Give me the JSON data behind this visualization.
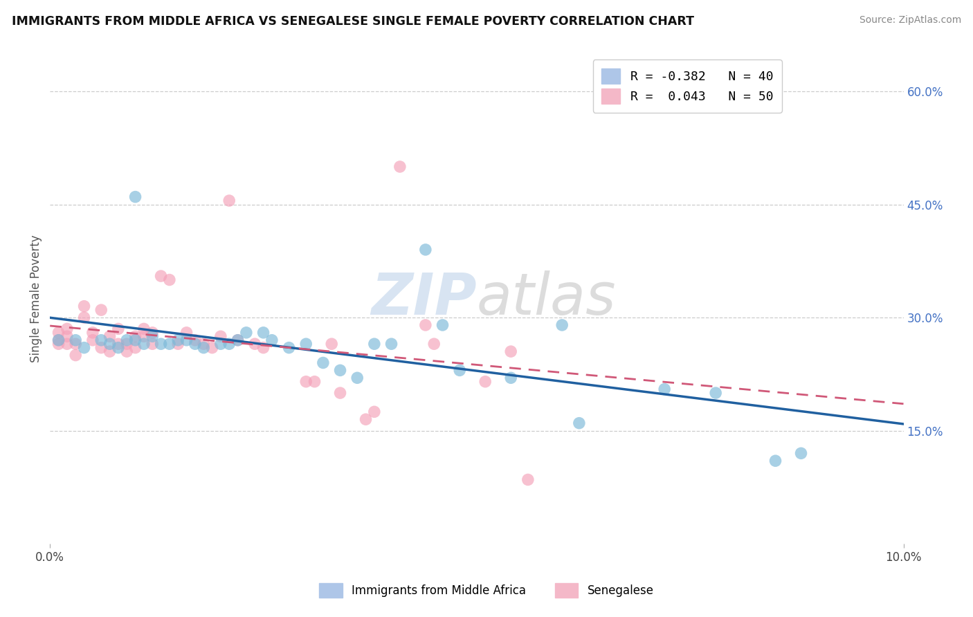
{
  "title": "IMMIGRANTS FROM MIDDLE AFRICA VS SENEGALESE SINGLE FEMALE POVERTY CORRELATION CHART",
  "source": "Source: ZipAtlas.com",
  "ylabel": "Single Female Poverty",
  "ylabel_right_ticks": [
    "60.0%",
    "45.0%",
    "30.0%",
    "15.0%"
  ],
  "ylabel_right_vals": [
    0.6,
    0.45,
    0.3,
    0.15
  ],
  "xlim": [
    0.0,
    0.1
  ],
  "ylim": [
    0.0,
    0.65
  ],
  "legend_entries": [
    {
      "label": "R = -0.382   N = 40",
      "color": "#aec6e8"
    },
    {
      "label": "R =  0.043   N = 50",
      "color": "#f4b8c8"
    }
  ],
  "legend_label1": "Immigrants from Middle Africa",
  "legend_label2": "Senegalese",
  "blue_scatter_x": [
    0.001,
    0.003,
    0.004,
    0.006,
    0.007,
    0.008,
    0.009,
    0.01,
    0.01,
    0.011,
    0.012,
    0.013,
    0.014,
    0.015,
    0.016,
    0.017,
    0.018,
    0.02,
    0.021,
    0.022,
    0.023,
    0.025,
    0.026,
    0.028,
    0.03,
    0.032,
    0.034,
    0.036,
    0.038,
    0.04,
    0.044,
    0.046,
    0.048,
    0.054,
    0.06,
    0.062,
    0.072,
    0.078,
    0.085,
    0.088
  ],
  "blue_scatter_y": [
    0.27,
    0.27,
    0.26,
    0.27,
    0.265,
    0.26,
    0.27,
    0.46,
    0.27,
    0.265,
    0.275,
    0.265,
    0.265,
    0.27,
    0.27,
    0.265,
    0.26,
    0.265,
    0.265,
    0.27,
    0.28,
    0.28,
    0.27,
    0.26,
    0.265,
    0.24,
    0.23,
    0.22,
    0.265,
    0.265,
    0.39,
    0.29,
    0.23,
    0.22,
    0.29,
    0.16,
    0.205,
    0.2,
    0.11,
    0.12
  ],
  "pink_scatter_x": [
    0.001,
    0.001,
    0.001,
    0.002,
    0.002,
    0.002,
    0.003,
    0.003,
    0.004,
    0.004,
    0.005,
    0.005,
    0.006,
    0.006,
    0.007,
    0.007,
    0.008,
    0.008,
    0.009,
    0.009,
    0.01,
    0.01,
    0.011,
    0.011,
    0.012,
    0.012,
    0.013,
    0.014,
    0.015,
    0.016,
    0.017,
    0.018,
    0.019,
    0.02,
    0.021,
    0.022,
    0.024,
    0.025,
    0.03,
    0.031,
    0.033,
    0.034,
    0.037,
    0.038,
    0.041,
    0.044,
    0.045,
    0.051,
    0.054,
    0.056
  ],
  "pink_scatter_y": [
    0.265,
    0.27,
    0.28,
    0.265,
    0.275,
    0.285,
    0.25,
    0.265,
    0.3,
    0.315,
    0.27,
    0.28,
    0.26,
    0.31,
    0.255,
    0.275,
    0.265,
    0.285,
    0.255,
    0.265,
    0.26,
    0.275,
    0.275,
    0.285,
    0.265,
    0.28,
    0.355,
    0.35,
    0.265,
    0.28,
    0.27,
    0.265,
    0.26,
    0.275,
    0.455,
    0.27,
    0.265,
    0.26,
    0.215,
    0.215,
    0.265,
    0.2,
    0.165,
    0.175,
    0.5,
    0.29,
    0.265,
    0.215,
    0.255,
    0.085
  ],
  "blue_color": "#7ab8d8",
  "pink_color": "#f4a0b8",
  "blue_line_color": "#2060a0",
  "pink_line_color": "#d05878",
  "grid_color": "#cccccc",
  "background_color": "#ffffff"
}
